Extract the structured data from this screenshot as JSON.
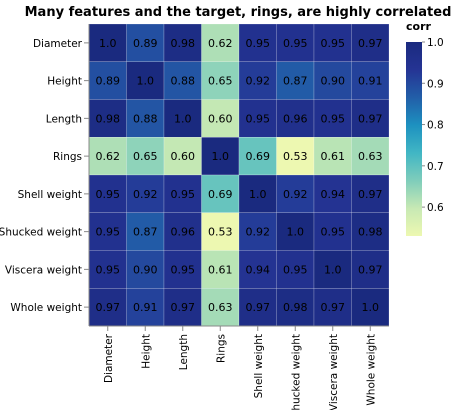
{
  "chart_data": {
    "type": "heatmap",
    "title": "Many features and the target, rings, are highly correlated",
    "variables": [
      "Diameter",
      "Height",
      "Length",
      "Rings",
      "Shell weight",
      "Shucked weight",
      "Viscera weight",
      "Whole weight"
    ],
    "values": [
      [
        1.0,
        0.89,
        0.98,
        0.62,
        0.95,
        0.95,
        0.95,
        0.97
      ],
      [
        0.89,
        1.0,
        0.88,
        0.65,
        0.92,
        0.87,
        0.9,
        0.91
      ],
      [
        0.98,
        0.88,
        1.0,
        0.6,
        0.95,
        0.96,
        0.95,
        0.97
      ],
      [
        0.62,
        0.65,
        0.6,
        1.0,
        0.69,
        0.53,
        0.61,
        0.63
      ],
      [
        0.95,
        0.92,
        0.95,
        0.69,
        1.0,
        0.92,
        0.94,
        0.97
      ],
      [
        0.95,
        0.87,
        0.96,
        0.53,
        0.92,
        1.0,
        0.95,
        0.98
      ],
      [
        0.95,
        0.9,
        0.95,
        0.61,
        0.94,
        0.95,
        1.0,
        0.97
      ],
      [
        0.97,
        0.91,
        0.97,
        0.63,
        0.97,
        0.98,
        0.97,
        1.0
      ]
    ],
    "cell_labels": [
      [
        "1.0",
        "0.89",
        "0.98",
        "0.62",
        "0.95",
        "0.95",
        "0.95",
        "0.97"
      ],
      [
        "0.89",
        "1.0",
        "0.88",
        "0.65",
        "0.92",
        "0.87",
        "0.90",
        "0.91"
      ],
      [
        "0.98",
        "0.88",
        "1.0",
        "0.60",
        "0.95",
        "0.96",
        "0.95",
        "0.97"
      ],
      [
        "0.62",
        "0.65",
        "0.60",
        "1.0",
        "0.69",
        "0.53",
        "0.61",
        "0.63"
      ],
      [
        "0.95",
        "0.92",
        "0.95",
        "0.69",
        "1.0",
        "0.92",
        "0.94",
        "0.97"
      ],
      [
        "0.95",
        "0.87",
        "0.96",
        "0.53",
        "0.92",
        "1.0",
        "0.95",
        "0.98"
      ],
      [
        "0.95",
        "0.90",
        "0.95",
        "0.61",
        "0.94",
        "0.95",
        "1.0",
        "0.97"
      ],
      [
        "0.97",
        "0.91",
        "0.97",
        "0.63",
        "0.97",
        "0.98",
        "0.97",
        "1.0"
      ]
    ],
    "legend": {
      "title": "corr",
      "range": [
        0.53,
        1.0
      ],
      "ticks": [
        0.6,
        0.7,
        0.8,
        0.9,
        1.0
      ],
      "tick_labels": [
        "0.6",
        "0.7",
        "0.8",
        "0.9",
        "1.0"
      ],
      "placement": "right"
    },
    "colormap": "YlGnBu",
    "colors": [
      "#edf8b1",
      "#c7e9b4",
      "#7fcdbb",
      "#41b6c4",
      "#1d91c0",
      "#225ea8",
      "#253494",
      "#1a2a7f"
    ]
  }
}
